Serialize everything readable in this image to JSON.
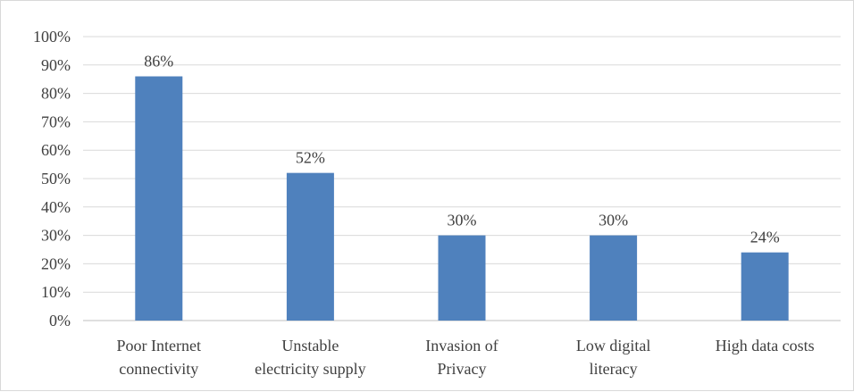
{
  "chart_data": {
    "type": "bar",
    "title": "",
    "xlabel": "",
    "ylabel": "",
    "categories": [
      [
        "Poor Internet",
        "connectivity"
      ],
      [
        "Unstable",
        "electricity supply"
      ],
      [
        "Invasion of",
        "Privacy"
      ],
      [
        "Low digital",
        "literacy"
      ],
      [
        "High data costs"
      ]
    ],
    "values": [
      86,
      52,
      30,
      30,
      24
    ],
    "data_labels": [
      "86%",
      "52%",
      "30%",
      "30%",
      "24%"
    ],
    "ylim": [
      0,
      100
    ],
    "yticks": [
      0,
      10,
      20,
      30,
      40,
      50,
      60,
      70,
      80,
      90,
      100
    ],
    "ytick_labels": [
      "0%",
      "10%",
      "20%",
      "30%",
      "40%",
      "50%",
      "60%",
      "70%",
      "80%",
      "90%",
      "100%"
    ],
    "grid": true,
    "legend": "none",
    "colors": {
      "bar": "#4f81bd",
      "grid": "#d9d9d9",
      "axis": "#bfbfbf",
      "text": "#404040"
    }
  }
}
